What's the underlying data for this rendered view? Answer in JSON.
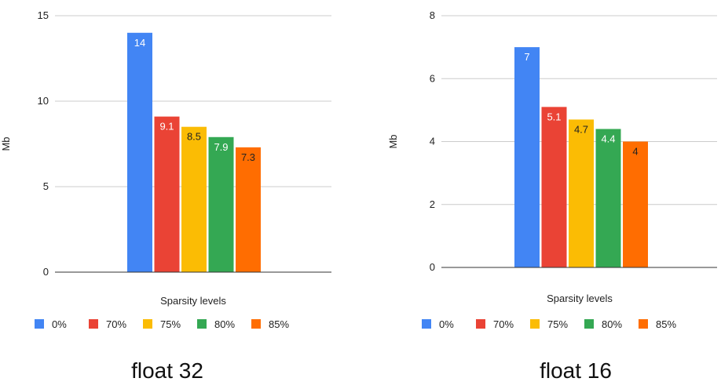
{
  "colors": {
    "c0": "#4285F4",
    "c70": "#EA4335",
    "c75": "#FBBC04",
    "c80": "#34A853",
    "c85": "#FF6D01",
    "grid": "#cccccc",
    "axis": "#333333",
    "text": "#222222"
  },
  "chart_data": [
    {
      "type": "bar",
      "title": "float 32",
      "xlabel": "Sparsity levels",
      "ylabel": "Mb",
      "ylim": [
        0,
        15
      ],
      "yticks": [
        0,
        5,
        10,
        15
      ],
      "grid": true,
      "legend": "bottom",
      "series": [
        {
          "name": "0%",
          "values": [
            14
          ]
        },
        {
          "name": "70%",
          "values": [
            9.1
          ]
        },
        {
          "name": "75%",
          "values": [
            8.5
          ]
        },
        {
          "name": "80%",
          "values": [
            7.9
          ]
        },
        {
          "name": "85%",
          "values": [
            7.3
          ]
        }
      ]
    },
    {
      "type": "bar",
      "title": "float 16",
      "xlabel": "Sparsity levels",
      "ylabel": "Mb",
      "ylim": [
        0,
        8
      ],
      "yticks": [
        0,
        2,
        4,
        6,
        8
      ],
      "grid": true,
      "legend": "bottom",
      "series": [
        {
          "name": "0%",
          "values": [
            7
          ]
        },
        {
          "name": "70%",
          "values": [
            5.1
          ]
        },
        {
          "name": "75%",
          "values": [
            4.7
          ]
        },
        {
          "name": "80%",
          "values": [
            4.4
          ]
        },
        {
          "name": "85%",
          "values": [
            4
          ]
        }
      ]
    }
  ]
}
